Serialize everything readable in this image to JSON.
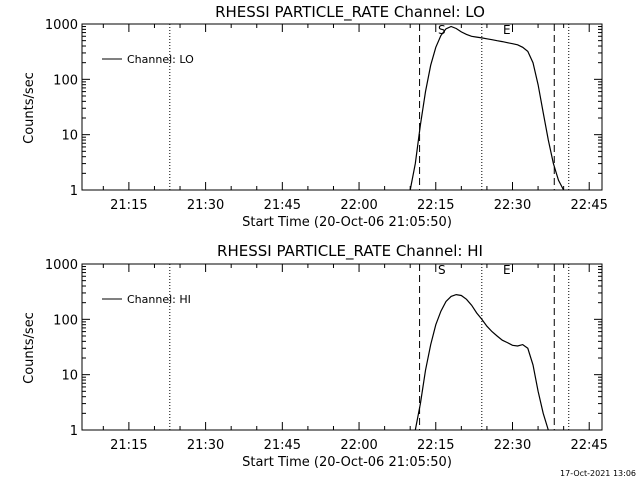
{
  "chart_data": [
    {
      "type": "line",
      "title": "RHESSI PARTICLE_RATE Channel: LO",
      "xlabel": "Start Time (20-Oct-06 21:05:50)",
      "ylabel": "Counts/sec",
      "yscale": "log",
      "ylim": [
        1,
        1000
      ],
      "y_tick_labels": [
        "1",
        "10",
        "100",
        "1000"
      ],
      "xlim": [
        "21:05:50",
        "22:47:30"
      ],
      "x_tick_labels": [
        "21:15",
        "21:30",
        "21:45",
        "22:00",
        "22:15",
        "22:30",
        "22:45"
      ],
      "legend": "top-left",
      "legend_label": "Channel: LO",
      "markers": {
        "start_label": "S",
        "end_label": "E"
      },
      "event_lines": {
        "dotted": [
          "21:23:00",
          "22:24:00",
          "22:41:00"
        ],
        "dashed": [
          "22:11:50",
          "22:38:10"
        ]
      },
      "series": [
        {
          "name": "Channel: LO",
          "x": [
            "22:10:00",
            "22:11:00",
            "22:12:00",
            "22:13:00",
            "22:14:00",
            "22:15:00",
            "22:16:00",
            "22:17:00",
            "22:18:00",
            "22:19:00",
            "22:20:00",
            "22:21:00",
            "22:22:00",
            "22:23:00",
            "22:24:00",
            "22:25:00",
            "22:26:00",
            "22:27:00",
            "22:28:00",
            "22:29:00",
            "22:30:00",
            "22:31:00",
            "22:32:00",
            "22:33:00",
            "22:34:00",
            "22:35:00",
            "22:36:00",
            "22:37:00",
            "22:38:00",
            "22:39:00",
            "22:40:00"
          ],
          "y": [
            1,
            3,
            15,
            60,
            180,
            380,
            620,
            820,
            900,
            830,
            720,
            650,
            600,
            580,
            560,
            540,
            520,
            500,
            480,
            460,
            440,
            420,
            380,
            320,
            200,
            80,
            25,
            8,
            3,
            1.5,
            1
          ]
        }
      ]
    },
    {
      "type": "line",
      "title": "RHESSI PARTICLE_RATE Channel: HI",
      "xlabel": "Start Time (20-Oct-06 21:05:50)",
      "ylabel": "Counts/sec",
      "yscale": "log",
      "ylim": [
        1,
        1000
      ],
      "y_tick_labels": [
        "1",
        "10",
        "100",
        "1000"
      ],
      "xlim": [
        "21:05:50",
        "22:47:30"
      ],
      "x_tick_labels": [
        "21:15",
        "21:30",
        "21:45",
        "22:00",
        "22:15",
        "22:30",
        "22:45"
      ],
      "legend": "top-left",
      "legend_label": "Channel: HI",
      "markers": {
        "start_label": "S",
        "end_label": "E"
      },
      "event_lines": {
        "dotted": [
          "21:23:00",
          "22:24:00",
          "22:41:00"
        ],
        "dashed": [
          "22:11:50",
          "22:38:10"
        ]
      },
      "series": [
        {
          "name": "Channel: HI",
          "x": [
            "22:11:00",
            "22:12:00",
            "22:13:00",
            "22:14:00",
            "22:15:00",
            "22:16:00",
            "22:17:00",
            "22:18:00",
            "22:19:00",
            "22:20:00",
            "22:21:00",
            "22:22:00",
            "22:23:00",
            "22:24:00",
            "22:25:00",
            "22:26:00",
            "22:27:00",
            "22:28:00",
            "22:29:00",
            "22:30:00",
            "22:31:00",
            "22:32:00",
            "22:33:00",
            "22:34:00",
            "22:35:00",
            "22:36:00",
            "22:37:00"
          ],
          "y": [
            1,
            3,
            12,
            35,
            80,
            140,
            210,
            260,
            280,
            270,
            230,
            180,
            130,
            100,
            75,
            60,
            50,
            42,
            38,
            34,
            33,
            35,
            30,
            15,
            5,
            2,
            1
          ]
        }
      ]
    }
  ],
  "footer": {
    "timestamp": "17-Oct-2021 13:06"
  }
}
